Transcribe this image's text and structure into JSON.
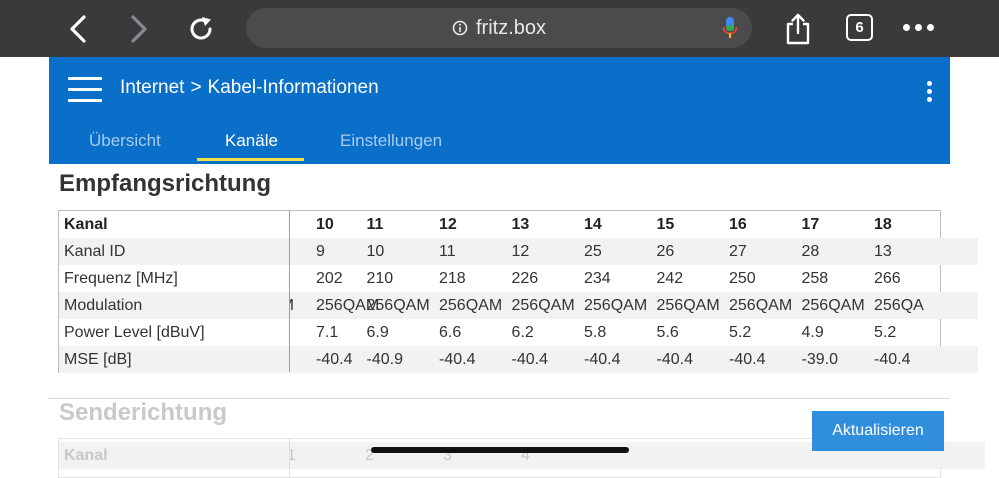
{
  "browser": {
    "url": "fritz.box",
    "tab_count": "6"
  },
  "header": {
    "breadcrumb_parent": "Internet",
    "breadcrumb_separator": ">",
    "breadcrumb_current": "Kabel-Informationen",
    "tabs": [
      {
        "label": "Übersicht",
        "active": false
      },
      {
        "label": "Kanäle",
        "active": true
      },
      {
        "label": "Einstellungen",
        "active": false
      }
    ]
  },
  "downstream": {
    "title": "Empfangsrichtung",
    "row_labels": [
      "Kanal",
      "Kanal ID",
      "Frequenz [MHz]",
      "Modulation",
      "Power Level [dBuV]",
      "MSE [dB]"
    ],
    "partial_left": [
      "",
      "",
      "",
      "M",
      "",
      ""
    ],
    "columns": [
      {
        "kanal": "10",
        "kanal_id": "9",
        "freq": "202",
        "mod": "256QAM",
        "power": "7.1",
        "mse": "-40.4"
      },
      {
        "kanal": "11",
        "kanal_id": "10",
        "freq": "210",
        "mod": "256QAM",
        "power": "6.9",
        "mse": "-40.9"
      },
      {
        "kanal": "12",
        "kanal_id": "11",
        "freq": "218",
        "mod": "256QAM",
        "power": "6.6",
        "mse": "-40.4"
      },
      {
        "kanal": "13",
        "kanal_id": "12",
        "freq": "226",
        "mod": "256QAM",
        "power": "6.2",
        "mse": "-40.4"
      },
      {
        "kanal": "14",
        "kanal_id": "25",
        "freq": "234",
        "mod": "256QAM",
        "power": "5.8",
        "mse": "-40.4"
      },
      {
        "kanal": "15",
        "kanal_id": "26",
        "freq": "242",
        "mod": "256QAM",
        "power": "5.6",
        "mse": "-40.4"
      },
      {
        "kanal": "16",
        "kanal_id": "27",
        "freq": "250",
        "mod": "256QAM",
        "power": "5.2",
        "mse": "-40.4"
      },
      {
        "kanal": "17",
        "kanal_id": "28",
        "freq": "258",
        "mod": "256QAM",
        "power": "4.9",
        "mse": "-39.0"
      },
      {
        "kanal": "18",
        "kanal_id": "13",
        "freq": "266",
        "mod": "256QA",
        "power": "5.2",
        "mse": "-40.4"
      }
    ]
  },
  "upstream": {
    "title": "Senderichtung",
    "row_label": "Kanal",
    "kanal": [
      "1",
      "2",
      "3",
      "4"
    ]
  },
  "refresh_button": "Aktualisieren",
  "colors": {
    "header_blue": "#0a6fc9",
    "tab_underline": "#f1e04a",
    "button_blue": "#2f8fdc"
  }
}
